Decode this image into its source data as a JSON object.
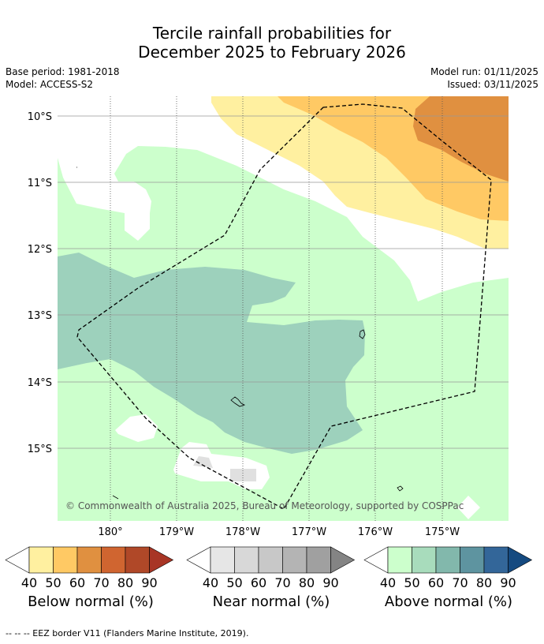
{
  "title": {
    "line1": "Tercile rainfall probabilities for",
    "line2": "December 2025 to February 2026"
  },
  "meta": {
    "base_period": "Base period: 1981-2018",
    "model": "Model: ACCESS-S2",
    "model_run": "Model run: 01/11/2025",
    "issued": "Issued: 03/11/2025"
  },
  "map": {
    "lat_labels": [
      "10°S",
      "11°S",
      "12°S",
      "13°S",
      "14°S",
      "15°S"
    ],
    "lon_labels": [
      "180°",
      "179°W",
      "178°W",
      "177°W",
      "176°W",
      "175°W"
    ],
    "copyright": "© Commonwealth of Australia 2025, Bureau of Meteorology, supported by COSPPac",
    "colors": {
      "below_40": "#fff0a0",
      "below_50": "#ffc964",
      "below_60": "#e09040",
      "near_50": "#e0e0e0",
      "above_40": "#ccffcc",
      "above_60": "#9dd1bc",
      "land_outline": "#000000",
      "eez_line": "#000000"
    }
  },
  "colorbars": [
    {
      "name": "below",
      "label": "Below normal (%)",
      "ticks": [
        "40",
        "50",
        "60",
        "70",
        "80",
        "90"
      ],
      "colors": [
        "#fff0a0",
        "#ffc964",
        "#e09040",
        "#d06530",
        "#b04828",
        "#a83525"
      ]
    },
    {
      "name": "near",
      "label": "Near normal (%)",
      "ticks": [
        "40",
        "50",
        "60",
        "70",
        "80",
        "90"
      ],
      "colors": [
        "#e6e6e6",
        "#d8d8d8",
        "#c8c8c8",
        "#b4b4b4",
        "#a0a0a0",
        "#848484"
      ]
    },
    {
      "name": "above",
      "label": "Above normal (%)",
      "ticks": [
        "40",
        "50",
        "60",
        "70",
        "80",
        "90"
      ],
      "colors": [
        "#ccffcc",
        "#a8dcbc",
        "#82b8ac",
        "#5e94a0",
        "#336699",
        "#154a80"
      ]
    }
  ],
  "eez_legend": "-- -- -- EEZ border V11 (Flanders Marine Institute, 2019)."
}
